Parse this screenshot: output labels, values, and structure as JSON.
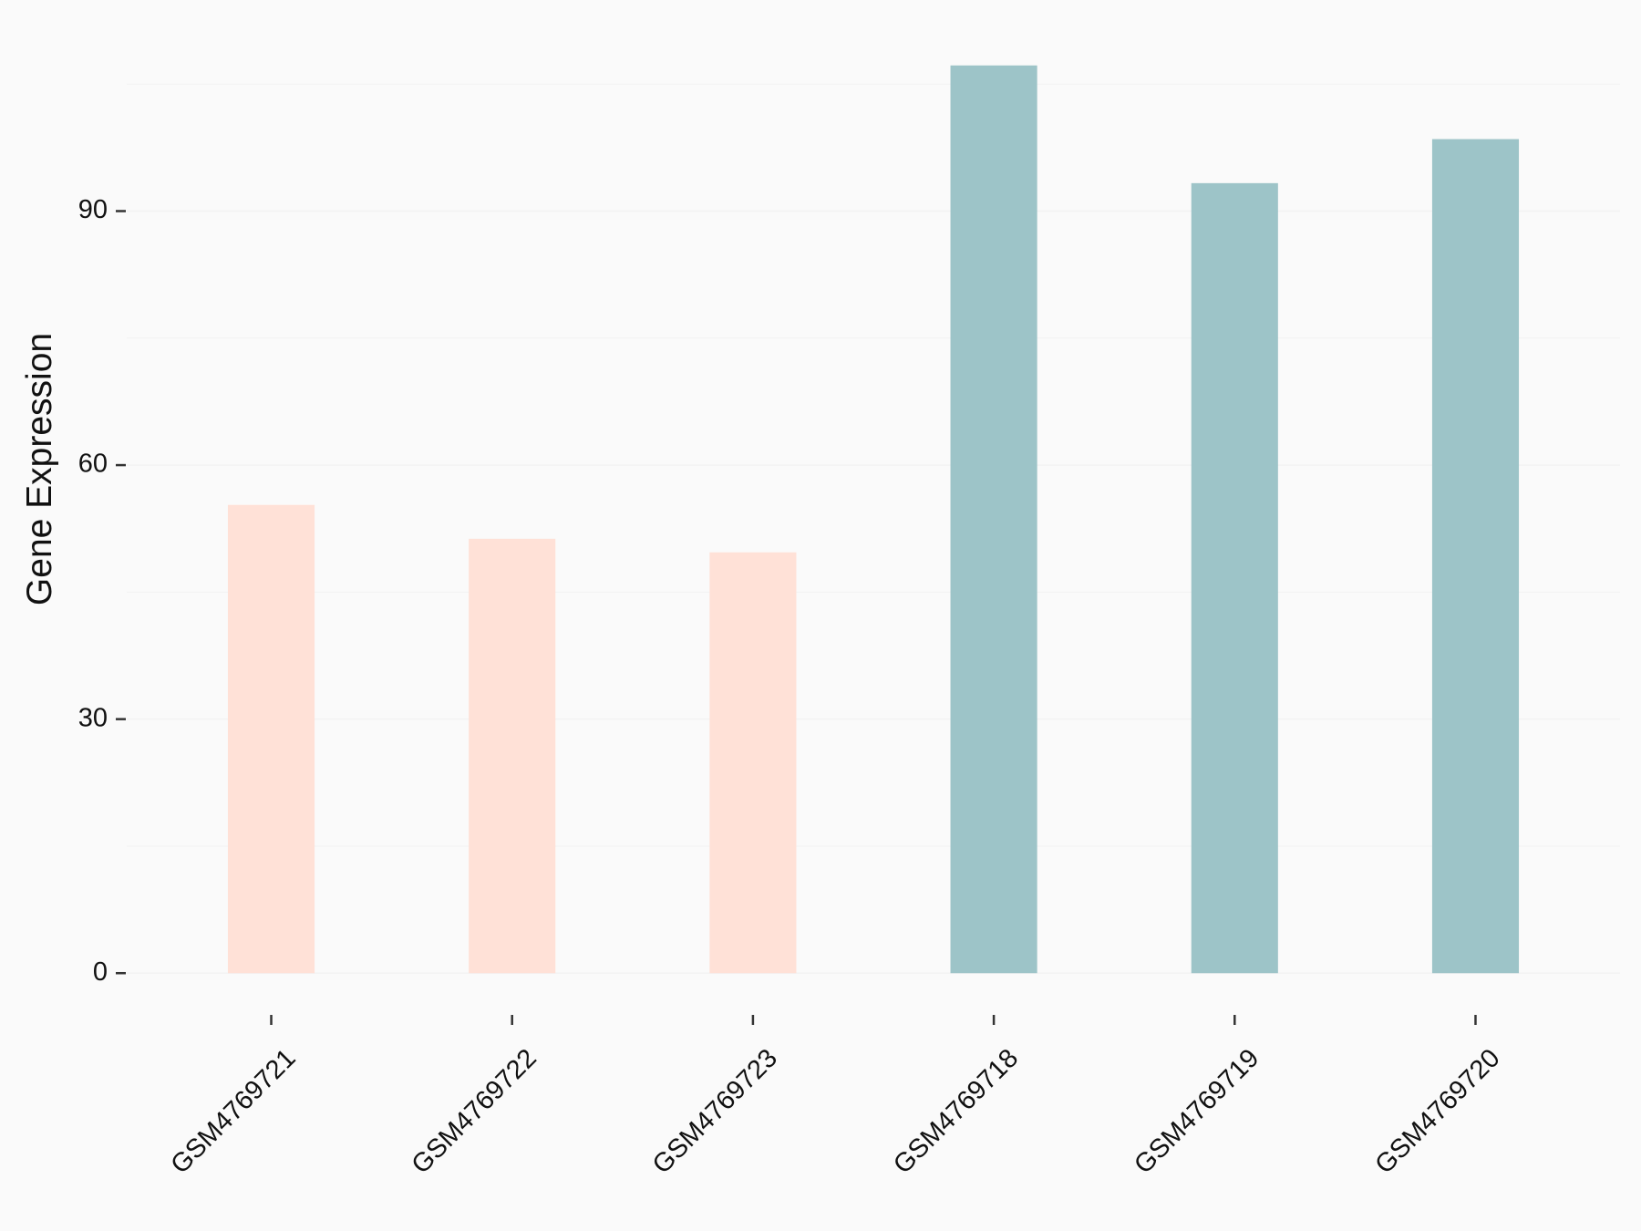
{
  "chart_data": {
    "type": "bar",
    "y_label": "Gene Expression",
    "categories": [
      "GSM4769721",
      "GSM4769722",
      "GSM4769723",
      "GSM4769718",
      "GSM4769719",
      "GSM4769720"
    ],
    "values": [
      55.3,
      51.3,
      49.7,
      107.2,
      93.3,
      98.5
    ],
    "colors": [
      "#FFE1D7",
      "#FFE1D7",
      "#FFE1D7",
      "#9DC4C8",
      "#9DC4C8",
      "#9DC4C8"
    ],
    "ylim": [
      -5.36,
      112.56
    ],
    "yticks": [
      0,
      30,
      60,
      90
    ],
    "minor_yticks": [
      15,
      45,
      75,
      105
    ],
    "grid": true,
    "background": "#FAFAFA"
  }
}
